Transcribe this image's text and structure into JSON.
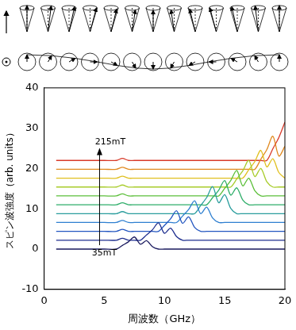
{
  "chart_data": {
    "type": "line",
    "x_label": "周波数（GHz）",
    "y_label": "スピン波強度（arb. units）",
    "x": [
      1,
      2,
      3,
      4,
      5,
      6,
      6.5,
      7,
      7.5,
      8,
      8.5,
      9,
      9.5,
      10,
      10.5,
      11,
      11.5,
      12,
      12.5,
      13,
      13.5,
      14,
      14.5,
      15,
      15.5,
      16,
      16.5,
      17,
      17.5,
      18,
      18.5,
      19,
      19.5,
      20
    ],
    "series": [
      {
        "color": "#1a1a5e",
        "values": [
          0,
          0,
          0,
          0,
          0,
          0,
          0.9,
          1.8,
          3,
          1.2,
          2.1,
          0.6,
          0,
          0,
          0,
          0,
          0,
          0,
          0,
          0,
          0,
          0,
          0,
          0,
          0,
          0,
          0,
          0,
          0,
          0,
          0,
          0,
          0,
          0
        ]
      },
      {
        "color": "#1f2f8f",
        "values": [
          2.2,
          2.2,
          2.2,
          2.2,
          2.2,
          2.2,
          2.7,
          2.2,
          2.2,
          2.2,
          3.5,
          4.8,
          6.5,
          3.9,
          5.2,
          3.1,
          2.2,
          2.2,
          2.2,
          2.2,
          2.2,
          2.2,
          2.2,
          2.2,
          2.2,
          2.2,
          2.2,
          2.2,
          2.2,
          2.2,
          2.2,
          2.2,
          2.2,
          2.2
        ]
      },
      {
        "color": "#2255c0",
        "values": [
          4.4,
          4.4,
          4.4,
          4.4,
          4.4,
          4.4,
          4.9,
          4.4,
          4.4,
          4.4,
          4.4,
          4.4,
          4.4,
          5.9,
          7.5,
          9.5,
          6.4,
          8,
          5.4,
          4.4,
          4.4,
          4.4,
          4.4,
          4.4,
          4.4,
          4.4,
          4.4,
          4.4,
          4.4,
          4.4,
          4.4,
          4.4,
          4.4,
          4.4
        ]
      },
      {
        "color": "#2e7fd0",
        "values": [
          6.6,
          6.6,
          6.6,
          6.6,
          6.6,
          6.6,
          7.1,
          6.6,
          6.6,
          6.6,
          6.6,
          6.6,
          6.6,
          6.6,
          6.6,
          6.6,
          8.2,
          9.8,
          12,
          8.8,
          10.4,
          7.7,
          6.6,
          6.6,
          6.6,
          6.6,
          6.6,
          6.6,
          6.6,
          6.6,
          6.6,
          6.6,
          6.6,
          6.6
        ]
      },
      {
        "color": "#2a9d9d",
        "values": [
          8.8,
          8.8,
          8.8,
          8.8,
          8.8,
          8.8,
          9.3,
          8.8,
          8.8,
          8.8,
          8.8,
          8.8,
          8.8,
          8.8,
          8.8,
          8.8,
          8.8,
          8.8,
          8.8,
          10.8,
          12.8,
          15.5,
          11.5,
          13.5,
          10.1,
          8.8,
          8.8,
          8.8,
          8.8,
          8.8,
          8.8,
          8.8,
          8.8,
          8.8
        ]
      },
      {
        "color": "#2fae6a",
        "values": [
          11,
          11,
          11,
          11,
          11,
          11,
          11.5,
          11,
          11,
          11,
          11,
          11,
          11,
          11,
          11,
          11,
          11,
          11,
          11,
          11,
          11,
          12.8,
          14.6,
          17,
          13.4,
          15.2,
          12.2,
          11,
          11,
          11,
          11,
          11,
          11,
          11
        ]
      },
      {
        "color": "#5cbf3a",
        "values": [
          13.2,
          13.2,
          13.2,
          13.2,
          13.2,
          13.2,
          13.7,
          13.2,
          13.2,
          13.2,
          13.2,
          13.2,
          13.2,
          13.2,
          13.2,
          13.2,
          13.2,
          13.2,
          13.2,
          13.2,
          13.2,
          13.2,
          13.2,
          15.1,
          17,
          19.5,
          15.7,
          17.6,
          14.5,
          13.2,
          13.2,
          13.2,
          13.2,
          13.2
        ]
      },
      {
        "color": "#a8cc2a",
        "values": [
          15.4,
          15.4,
          15.4,
          15.4,
          15.4,
          15.4,
          15.9,
          15.4,
          15.4,
          15.4,
          15.4,
          15.4,
          15.4,
          15.4,
          15.4,
          15.4,
          15.4,
          15.4,
          15.4,
          15.4,
          15.4,
          15.4,
          15.4,
          15.4,
          15.4,
          17.4,
          19.4,
          22,
          18,
          20,
          16.7,
          15.4,
          15.4,
          15.4
        ]
      },
      {
        "color": "#e0c020",
        "values": [
          17.6,
          17.6,
          17.6,
          17.6,
          17.6,
          17.6,
          18.1,
          17.6,
          17.6,
          17.6,
          17.6,
          17.6,
          17.6,
          17.6,
          17.6,
          17.6,
          17.6,
          17.6,
          17.6,
          17.6,
          17.6,
          17.6,
          17.6,
          17.6,
          17.6,
          17.6,
          17.6,
          19.7,
          21.7,
          24.5,
          20.4,
          22.4,
          19,
          17.6
        ]
      },
      {
        "color": "#e08a20",
        "values": [
          19.8,
          19.8,
          19.8,
          19.8,
          19.8,
          19.8,
          20.3,
          19.8,
          19.8,
          19.8,
          19.8,
          19.8,
          19.8,
          19.8,
          19.8,
          19.8,
          19.8,
          19.8,
          19.8,
          19.8,
          19.8,
          19.8,
          19.8,
          19.8,
          19.8,
          19.8,
          19.8,
          19.8,
          19.8,
          22.3,
          24.7,
          28,
          23.1,
          25.5
        ]
      },
      {
        "color": "#d83a2a",
        "values": [
          22,
          22,
          22,
          22,
          22,
          22,
          22.5,
          22,
          22,
          22,
          22,
          22,
          22,
          22,
          22,
          22,
          22,
          22,
          22,
          22,
          22,
          22,
          22,
          22,
          22,
          22,
          22,
          22,
          22,
          22,
          22,
          24.9,
          27.7,
          31.5
        ]
      }
    ],
    "xlim": [
      0,
      20
    ],
    "xticks": [
      0,
      5,
      10,
      15,
      20
    ],
    "ylim": [
      -10,
      40
    ],
    "yticks": [
      -10,
      0,
      10,
      20,
      30,
      40
    ],
    "grid": false,
    "annotations": [
      {
        "text": "215mT",
        "x": 5.5,
        "y": 26.5
      },
      {
        "text": "35mT",
        "x": 5,
        "y": -1
      }
    ]
  }
}
